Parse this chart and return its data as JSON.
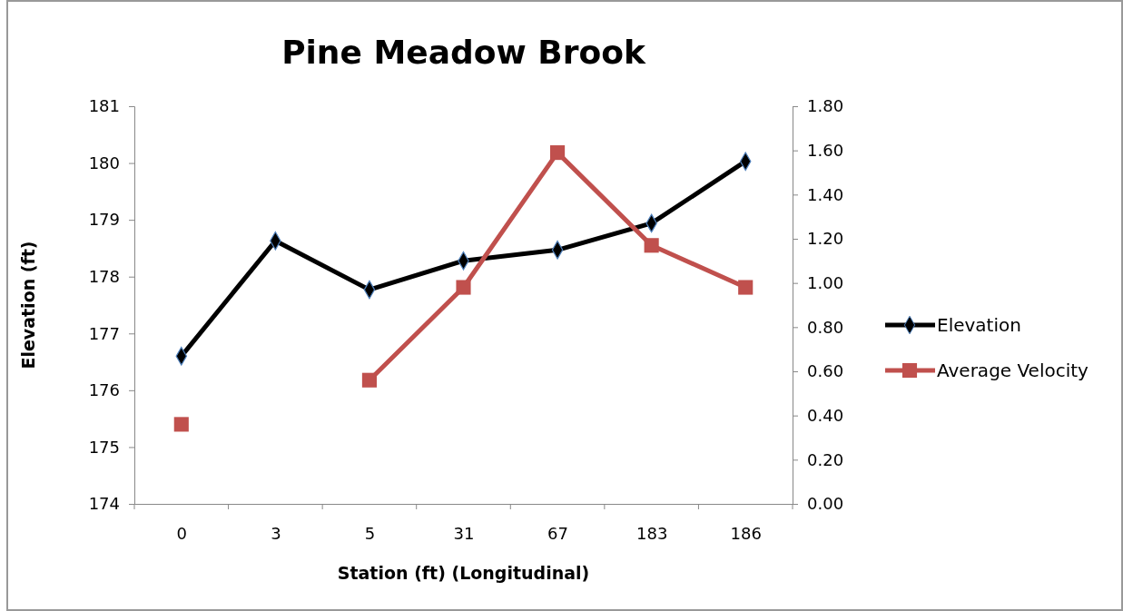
{
  "chart_data": {
    "type": "line",
    "title": "Pine Meadow Brook",
    "xlabel": "Station (ft) (Longitudinal)",
    "ylabel": "Elevation (ft)",
    "categories": [
      "0",
      "3",
      "5",
      "31",
      "67",
      "183",
      "186"
    ],
    "series": [
      {
        "name": "Elevation",
        "color": "#000000",
        "marker": "diamond",
        "values": [
          176.6,
          178.63,
          177.77,
          178.28,
          178.47,
          178.94,
          180.03
        ]
      },
      {
        "name": "Average Velocity",
        "color": "#c0504d",
        "marker": "square",
        "axis": "y2",
        "values": [
          0.36,
          null,
          0.56,
          0.98,
          1.59,
          1.17,
          0.98
        ]
      }
    ],
    "ylim": [
      174,
      181
    ],
    "yticks": [
      174,
      175,
      176,
      177,
      178,
      179,
      180,
      181
    ],
    "y2lim": [
      0,
      1.8
    ],
    "y2ticks": [
      {
        "value": 0,
        "label": "0.00"
      },
      {
        "value": 0.2,
        "label": "0.20"
      },
      {
        "value": 0.4,
        "label": "0.40"
      },
      {
        "value": 0.6,
        "label": "0.60"
      },
      {
        "value": 0.8,
        "label": "0.80"
      },
      {
        "value": 1.0,
        "label": "1.00"
      },
      {
        "value": 1.2,
        "label": "1.20"
      },
      {
        "value": 1.4,
        "label": "1.40"
      },
      {
        "value": 1.6,
        "label": "1.60"
      },
      {
        "value": 1.8,
        "label": "1.80"
      }
    ],
    "grid": false,
    "legend": "right",
    "line_style": "solid"
  }
}
